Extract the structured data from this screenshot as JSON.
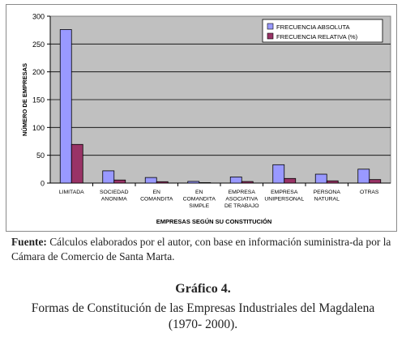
{
  "chart_data": {
    "type": "bar",
    "categories": [
      [
        "LIMITADA"
      ],
      [
        "SOCIEDAD",
        "ANONIMA"
      ],
      [
        "EN",
        "COMANDITA"
      ],
      [
        "EN",
        "COMANDITA",
        "SIMPLE"
      ],
      [
        "EMPRESA",
        "ASOCIATIVA",
        "DE TRABAJO"
      ],
      [
        "EMPRESA",
        "UNIPERSONAL"
      ],
      [
        "PERSONA",
        "NATURAL"
      ],
      [
        "OTRAS"
      ]
    ],
    "series": [
      {
        "name": "FRECUENCIA ABSOLUTA",
        "color": "#9999ff",
        "values": [
          276,
          22,
          10,
          3,
          11,
          33,
          16,
          25
        ]
      },
      {
        "name": "FRECUENCIA RELATIVA (%)",
        "color": "#993366",
        "values": [
          69.5,
          5.5,
          2.5,
          0.8,
          2.8,
          8.3,
          4.0,
          6.3
        ]
      }
    ],
    "xlabel": "EMPRESAS SEGÚN SU CONSTITUCIÓN",
    "ylabel": "NÚMERO DE EMPRESAS",
    "ylim": [
      0,
      300
    ],
    "yticks": [
      0,
      50,
      100,
      150,
      200,
      250,
      300
    ],
    "plot_background": "#c0c0c0",
    "grid": true,
    "legend_position": "top-right"
  },
  "source": {
    "label": "Fuente:",
    "text": " Cálculos elaborados por el autor, con base en información suministra-da por la Cámara de Comercio de Santa Marta."
  },
  "caption": {
    "title": "Gráfico 4.",
    "line1": "Formas de Constitución de las Empresas Industriales del Magdalena",
    "line2": "(1970- 2000)."
  }
}
